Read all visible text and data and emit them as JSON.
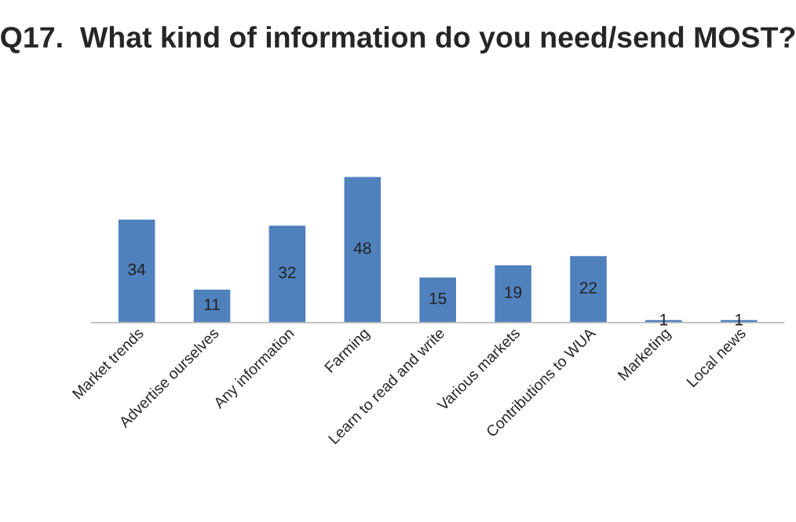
{
  "chart_data": {
    "type": "bar",
    "title": "Q17.  What kind of information do you need/send MOST?",
    "categories": [
      "Market trends",
      "Advertise ourselves",
      "Any information",
      "Farming",
      "Learn to read and write",
      "Various markets",
      "Contributions to WUA",
      "Marketing",
      "Local news"
    ],
    "values": [
      34,
      11,
      32,
      48,
      15,
      19,
      22,
      1,
      1
    ],
    "color": "#4f81bd",
    "data_labels": true,
    "tick_labels": "x"
  }
}
